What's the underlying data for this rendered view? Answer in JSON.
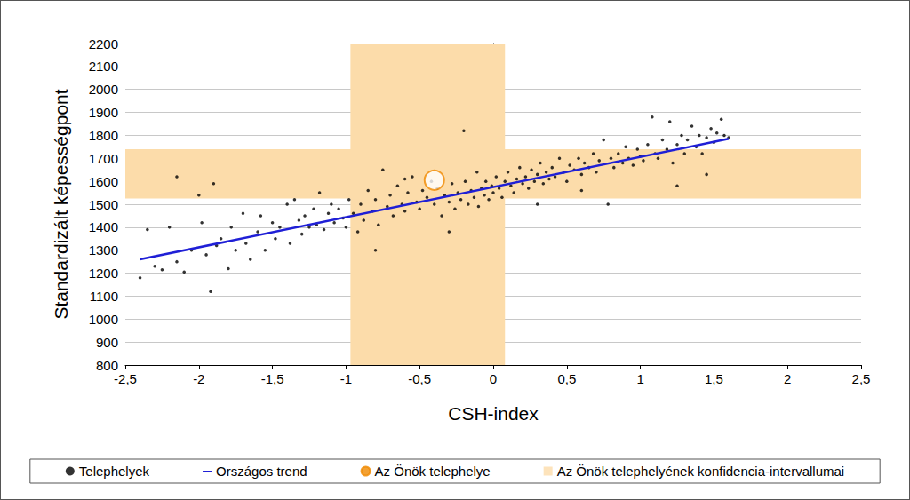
{
  "chart_data": {
    "type": "scatter",
    "x_label": "CSH-index",
    "y_label": "Standardizált képességpont",
    "xlim": [
      -2.5,
      2.5
    ],
    "xticks": [
      {
        "value": -2.5,
        "label": "-2,5"
      },
      -2,
      {
        "value": -1.5,
        "label": "-1,5"
      },
      -1,
      {
        "value": -0.5,
        "label": "-0,5"
      },
      0,
      {
        "value": 0.5,
        "label": "0,5"
      },
      1,
      {
        "value": 1.5,
        "label": "1,5"
      },
      2,
      {
        "value": 2.5,
        "label": "2,5"
      }
    ],
    "ylim": [
      800,
      2200
    ],
    "yticks": [
      800,
      900,
      1000,
      1100,
      1200,
      1300,
      1400,
      1500,
      1600,
      1700,
      1800,
      1900,
      2000,
      2100,
      2200
    ],
    "grid": true,
    "legend": "bottom",
    "series": [
      {
        "name": "Telephelyek",
        "type": "scatter",
        "color": "#000000",
        "marker": "circle",
        "x": [
          -2.4,
          -2.35,
          -2.3,
          -2.25,
          -2.2,
          -2.15,
          -2.15,
          -2.1,
          -2.05,
          -2.0,
          -1.98,
          -1.95,
          -1.92,
          -1.9,
          -1.88,
          -1.85,
          -1.8,
          -1.78,
          -1.75,
          -1.7,
          -1.68,
          -1.65,
          -1.6,
          -1.58,
          -1.55,
          -1.5,
          -1.48,
          -1.45,
          -1.4,
          -1.38,
          -1.35,
          -1.32,
          -1.3,
          -1.28,
          -1.25,
          -1.22,
          -1.2,
          -1.18,
          -1.15,
          -1.12,
          -1.1,
          -1.08,
          -1.05,
          -1.02,
          -1.0,
          -0.98,
          -0.95,
          -0.92,
          -0.9,
          -0.88,
          -0.85,
          -0.82,
          -0.8,
          -0.78,
          -0.75,
          -0.72,
          -0.7,
          -0.68,
          -0.65,
          -0.62,
          -0.6,
          -0.58,
          -0.55,
          -0.52,
          -0.5,
          -0.48,
          -0.45,
          -0.42,
          -0.4,
          -0.38,
          -0.35,
          -0.33,
          -0.3,
          -0.28,
          -0.26,
          -0.24,
          -0.22,
          -0.2,
          -0.19,
          -0.17,
          -0.15,
          -0.13,
          -0.11,
          -0.1,
          -0.08,
          -0.06,
          -0.05,
          -0.03,
          -0.01,
          0.0,
          0.02,
          0.04,
          0.06,
          0.08,
          0.1,
          0.12,
          0.14,
          0.16,
          0.18,
          0.2,
          0.22,
          0.24,
          0.26,
          0.28,
          0.3,
          0.32,
          0.34,
          0.36,
          0.38,
          0.4,
          0.42,
          0.45,
          0.48,
          0.5,
          0.52,
          0.55,
          0.58,
          0.6,
          0.62,
          0.65,
          0.68,
          0.7,
          0.72,
          0.75,
          0.78,
          0.8,
          0.82,
          0.85,
          0.88,
          0.9,
          0.92,
          0.95,
          0.98,
          1.0,
          1.02,
          1.05,
          1.08,
          1.1,
          1.12,
          1.15,
          1.18,
          1.2,
          1.22,
          1.25,
          1.28,
          1.3,
          1.32,
          1.35,
          1.38,
          1.4,
          1.42,
          1.45,
          1.48,
          1.5,
          1.52,
          1.55,
          1.57,
          1.6,
          1.25,
          1.45,
          0.6,
          0.3,
          -0.6,
          -0.8,
          -0.3
        ],
        "values": [
          1180,
          1390,
          1230,
          1215,
          1400,
          1620,
          1250,
          1205,
          1300,
          1540,
          1420,
          1280,
          1120,
          1590,
          1320,
          1350,
          1220,
          1400,
          1300,
          1460,
          1330,
          1260,
          1380,
          1450,
          1300,
          1420,
          1350,
          1400,
          1500,
          1330,
          1520,
          1430,
          1370,
          1450,
          1400,
          1480,
          1410,
          1550,
          1390,
          1460,
          1500,
          1420,
          1480,
          1440,
          1400,
          1520,
          1460,
          1380,
          1500,
          1430,
          1560,
          1470,
          1520,
          1410,
          1650,
          1490,
          1540,
          1450,
          1580,
          1500,
          1470,
          1550,
          1620,
          1510,
          1480,
          1560,
          1530,
          1600,
          1500,
          1570,
          1450,
          1540,
          1510,
          1590,
          1480,
          1550,
          1520,
          1820,
          1600,
          1500,
          1560,
          1530,
          1640,
          1490,
          1570,
          1540,
          1600,
          1520,
          1580,
          1550,
          1620,
          1570,
          1530,
          1600,
          1640,
          1580,
          1550,
          1610,
          1660,
          1590,
          1620,
          1570,
          1650,
          1600,
          1630,
          1680,
          1590,
          1640,
          1610,
          1660,
          1620,
          1700,
          1640,
          1600,
          1670,
          1650,
          1700,
          1630,
          1680,
          1660,
          1720,
          1640,
          1690,
          1780,
          1500,
          1700,
          1660,
          1720,
          1680,
          1750,
          1700,
          1670,
          1740,
          1710,
          1690,
          1760,
          1880,
          1720,
          1700,
          1780,
          1740,
          1860,
          1680,
          1760,
          1800,
          1720,
          1780,
          1840,
          1750,
          1800,
          1720,
          1790,
          1830,
          1770,
          1810,
          1870,
          1800,
          1790,
          1580,
          1630,
          1560,
          1500,
          1610,
          1300,
          1380
        ]
      },
      {
        "name": "Országos trend",
        "type": "line",
        "color": "#1f1fd6",
        "line_style": "solid",
        "x": [
          -2.4,
          1.6
        ],
        "values": [
          1260,
          1785
        ]
      },
      {
        "name": "Az Önök telephelye",
        "type": "scatter",
        "color": "#f08a00",
        "marker": "emptyCircle",
        "x": [
          -0.4
        ],
        "values": [
          1605
        ]
      },
      {
        "name": "Az Önök telephelyének konfidencia-intervallumai",
        "type": "band",
        "color": "#fcdcaa",
        "x": [
          -0.97,
          0.08
        ],
        "values": [
          1525,
          1740
        ]
      }
    ]
  }
}
